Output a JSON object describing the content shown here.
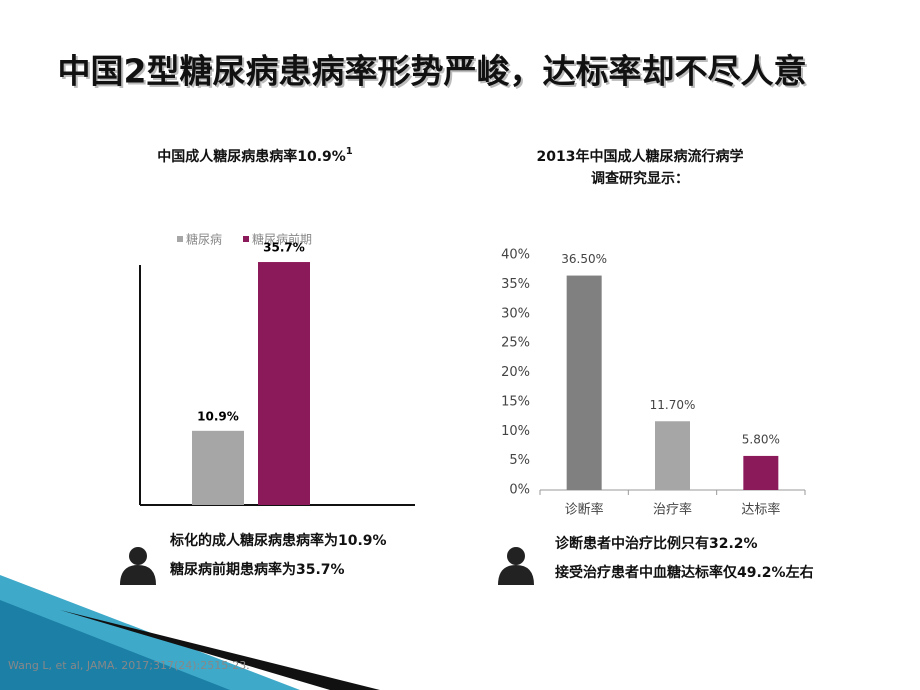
{
  "slide_title": "中国2型糖尿病患病率形势严峻，达标率却不尽人意",
  "chart_data": [
    {
      "type": "bar",
      "title": "中国成人糖尿病患病率10.9%",
      "title_sup": "1",
      "categories": [
        null
      ],
      "series": [
        {
          "name": "糖尿病",
          "color": "#a6a6a6",
          "values": [
            10.9
          ],
          "value_labels": [
            "10.9%"
          ]
        },
        {
          "name": "糖尿病前期",
          "color": "#8b1a5a",
          "values": [
            35.7
          ],
          "value_labels": [
            "35.7%"
          ]
        }
      ],
      "legend": "top",
      "ylim": [
        0,
        36
      ],
      "notes": [
        "标化的成人糖尿病患病率为10.9%",
        "糖尿病前期患病率为35.7%"
      ]
    },
    {
      "type": "bar",
      "title": [
        "2013年中国成人糖尿病流行病学",
        "调查研究显示："
      ],
      "categories": [
        "诊断率",
        "治疗率",
        "达标率"
      ],
      "values": [
        36.5,
        11.7,
        5.8
      ],
      "value_labels": [
        "36.50%",
        "11.70%",
        "5.80%"
      ],
      "colors": [
        "#808080",
        "#a6a6a6",
        "#8b1a5a"
      ],
      "ylim": [
        0,
        40
      ],
      "yticks": [
        {
          "value": 0,
          "label": "0%"
        },
        {
          "value": 5,
          "label": "5%"
        },
        {
          "value": 10,
          "label": "10%"
        },
        {
          "value": 15,
          "label": "15%"
        },
        {
          "value": 20,
          "label": "20%"
        },
        {
          "value": 25,
          "label": "25%"
        },
        {
          "value": 30,
          "label": "30%"
        },
        {
          "value": 35,
          "label": "35%"
        },
        {
          "value": 40,
          "label": "40%"
        }
      ],
      "notes": [
        "诊断患者中治疗比例只有32.2%",
        "接受治疗患者中血糖达标率仅49.2%左右"
      ]
    }
  ],
  "reference": "Wang L, et al, JAMA. 2017;317(24):2515-23."
}
